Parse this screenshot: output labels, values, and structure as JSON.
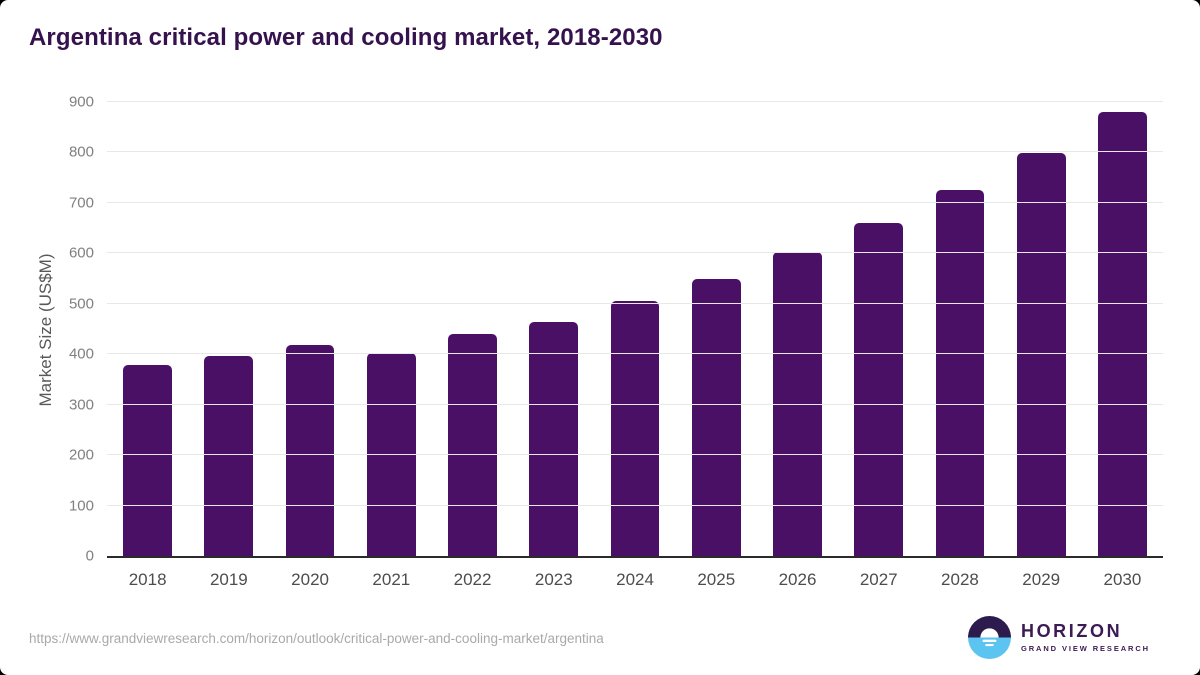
{
  "header": {
    "title": "Argentina critical power and cooling market, 2018-2030"
  },
  "colors": {
    "bar": "#4a1066",
    "title": "#35124e",
    "gridline": "#e8e8e8",
    "axis_line": "#2b2b2b",
    "ytick_text": "#808080",
    "xtick_text": "#4d4d4d",
    "url_text": "#a9a9a9",
    "logo_purple": "#3b1b55",
    "logo_blue": "#5bc4f0"
  },
  "chart_data": {
    "type": "bar",
    "title": "Argentina critical power and cooling market, 2018-2030",
    "categories": [
      "2018",
      "2019",
      "2020",
      "2021",
      "2022",
      "2023",
      "2024",
      "2025",
      "2026",
      "2027",
      "2028",
      "2029",
      "2030"
    ],
    "values": [
      378,
      396,
      418,
      402,
      441,
      463,
      505,
      550,
      602,
      660,
      726,
      798,
      881
    ],
    "xlabel": "",
    "ylabel": "Market Size (US$M)",
    "ylim": [
      0,
      900
    ],
    "ytick_interval": 100,
    "grid": "horizontal",
    "legend": "none",
    "bar_color": "#4a1066"
  },
  "footer": {
    "source_url": "https://www.grandviewresearch.com/horizon/outlook/critical-power-and-cooling-market/argentina",
    "logo": {
      "name": "HORIZON",
      "subtitle": "GRAND VIEW RESEARCH"
    }
  }
}
